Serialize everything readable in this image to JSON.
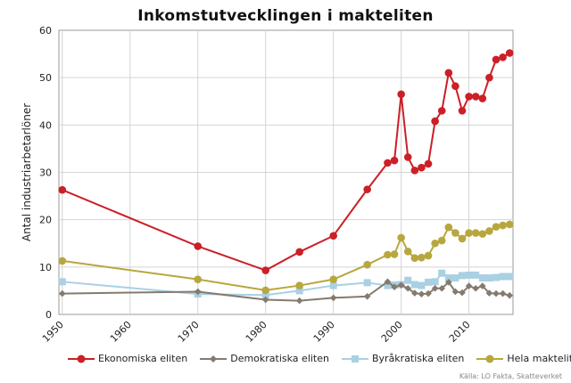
{
  "chart_data": {
    "type": "line",
    "title": "Inkomstutvecklingen i makteliten",
    "xlabel": "",
    "ylabel": "Antal industriarbetarlöner",
    "xlim": [
      1949.5,
      2016.5
    ],
    "ylim": [
      0,
      60
    ],
    "xticks": [
      1950,
      1960,
      1970,
      1980,
      1990,
      2000,
      2010
    ],
    "yticks": [
      0,
      10,
      20,
      30,
      40,
      50,
      60
    ],
    "grid": true,
    "legend_position": "bottom",
    "series": [
      {
        "name": "Ekonomiska eliten",
        "color": "#cc1f26",
        "marker": "circle",
        "x": [
          1950,
          1970,
          1980,
          1985,
          1990,
          1995,
          1998,
          1999,
          2000,
          2001,
          2002,
          2003,
          2004,
          2005,
          2006,
          2007,
          2008,
          2009,
          2010,
          2011,
          2012,
          2013,
          2014,
          2015,
          2016
        ],
        "y": [
          26.3,
          14.4,
          9.3,
          13.2,
          16.6,
          26.4,
          32.0,
          32.5,
          46.5,
          33.2,
          30.4,
          31.0,
          31.8,
          40.8,
          43.0,
          51.0,
          48.2,
          43.0,
          46.0,
          46.0,
          45.6,
          50.0,
          53.8,
          54.3,
          55.2
        ]
      },
      {
        "name": "Demokratiska eliten",
        "color": "#857a6e",
        "marker": "diamond",
        "x": [
          1950,
          1970,
          1980,
          1985,
          1990,
          1995,
          1998,
          1999,
          2000,
          2001,
          2002,
          2003,
          2004,
          2005,
          2006,
          2007,
          2008,
          2009,
          2010,
          2011,
          2012,
          2013,
          2014,
          2015,
          2016
        ],
        "y": [
          4.4,
          4.8,
          3.1,
          2.9,
          3.5,
          3.8,
          6.9,
          5.8,
          6.2,
          5.5,
          4.5,
          4.3,
          4.4,
          5.5,
          5.5,
          6.8,
          4.8,
          4.6,
          6.0,
          5.5,
          6.0,
          4.5,
          4.4,
          4.4,
          4.0
        ]
      },
      {
        "name": "Byråkratiska eliten",
        "color": "#a9d0e3",
        "marker": "square",
        "x": [
          1950,
          1970,
          1980,
          1985,
          1990,
          1995,
          1998,
          1999,
          2000,
          2001,
          2002,
          2003,
          2004,
          2005,
          2006,
          2007,
          2008,
          2009,
          2010,
          2011,
          2012,
          2013,
          2014,
          2015,
          2016
        ],
        "y": [
          6.9,
          4.3,
          4.1,
          5.0,
          6.1,
          6.7,
          6.1,
          6.2,
          6.3,
          7.2,
          6.3,
          6.1,
          6.8,
          6.9,
          8.7,
          7.7,
          7.7,
          8.2,
          8.3,
          8.3,
          7.7,
          7.7,
          7.8,
          8.0,
          8.0
        ]
      },
      {
        "name": "Hela makteliten",
        "color": "#b7a73e",
        "marker": "circle",
        "x": [
          1950,
          1970,
          1980,
          1985,
          1990,
          1995,
          1998,
          1999,
          2000,
          2001,
          2002,
          2003,
          2004,
          2005,
          2006,
          2007,
          2008,
          2009,
          2010,
          2011,
          2012,
          2013,
          2014,
          2015,
          2016
        ],
        "y": [
          11.3,
          7.4,
          5.1,
          6.1,
          7.4,
          10.5,
          12.6,
          12.7,
          16.2,
          13.3,
          11.9,
          12.0,
          12.4,
          15.0,
          15.6,
          18.4,
          17.2,
          16.0,
          17.2,
          17.2,
          17.0,
          17.6,
          18.5,
          18.8,
          19.0
        ]
      }
    ],
    "source": "Källa: LO Fakta, Skatteverket"
  }
}
